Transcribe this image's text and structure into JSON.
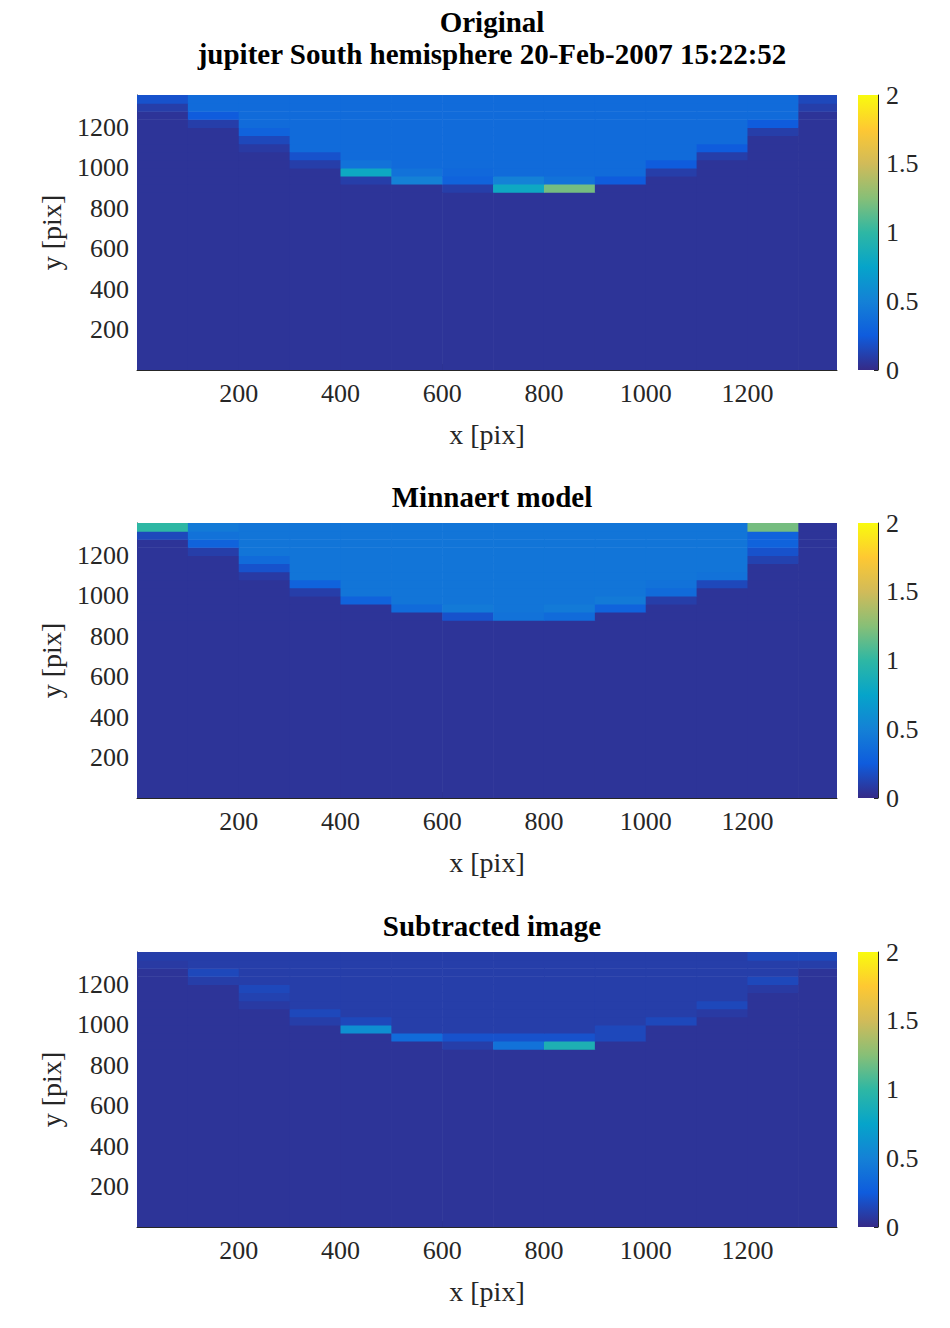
{
  "chart_data": [
    {
      "type": "heatmap",
      "title": "Original",
      "subtitle": "jupiter South hemisphere 20-Feb-2007 15:22:52",
      "x_label": "x [pix]",
      "y_label": "y [pix]",
      "xlim": [
        0,
        1376
      ],
      "ylim": [
        0,
        1360
      ],
      "xticks": [
        200,
        400,
        600,
        800,
        1000,
        1200
      ],
      "yticks": [
        200,
        400,
        600,
        800,
        1000,
        1200
      ],
      "x_edges": [
        0,
        100,
        200,
        300,
        400,
        500,
        600,
        700,
        800,
        900,
        1000,
        1100,
        1200,
        1300,
        1376
      ],
      "y_edges": [
        0,
        880,
        920,
        960,
        1000,
        1040,
        1080,
        1120,
        1160,
        1200,
        1240,
        1280,
        1320,
        1360
      ],
      "cells": [
        [
          0.05,
          0.05,
          0.05,
          0.05,
          0.05,
          0.05,
          0.05,
          0.05,
          0.05,
          0.05,
          0.05,
          0.05,
          0.05,
          0.05
        ],
        [
          0.05,
          0.05,
          0.05,
          0.05,
          0.05,
          0.05,
          0.1,
          0.8,
          1.2,
          0.05,
          0.05,
          0.05,
          0.05,
          0.05
        ],
        [
          0.05,
          0.05,
          0.05,
          0.05,
          0.1,
          0.5,
          0.3,
          0.5,
          0.4,
          0.25,
          0.05,
          0.05,
          0.05,
          0.05
        ],
        [
          0.05,
          0.05,
          0.05,
          0.05,
          0.8,
          0.4,
          0.33,
          0.35,
          0.35,
          0.35,
          0.1,
          0.05,
          0.05,
          0.05
        ],
        [
          0.05,
          0.05,
          0.05,
          0.1,
          0.4,
          0.35,
          0.35,
          0.35,
          0.35,
          0.35,
          0.25,
          0.05,
          0.05,
          0.05
        ],
        [
          0.05,
          0.05,
          0.05,
          0.2,
          0.35,
          0.35,
          0.35,
          0.35,
          0.35,
          0.35,
          0.35,
          0.1,
          0.05,
          0.05
        ],
        [
          0.05,
          0.05,
          0.08,
          0.35,
          0.35,
          0.35,
          0.35,
          0.35,
          0.35,
          0.35,
          0.35,
          0.25,
          0.05,
          0.05
        ],
        [
          0.05,
          0.05,
          0.15,
          0.35,
          0.35,
          0.35,
          0.35,
          0.35,
          0.35,
          0.35,
          0.35,
          0.35,
          0.05,
          0.05
        ],
        [
          0.05,
          0.05,
          0.3,
          0.35,
          0.35,
          0.35,
          0.35,
          0.35,
          0.35,
          0.35,
          0.35,
          0.35,
          0.1,
          0.05
        ],
        [
          0.05,
          0.1,
          0.35,
          0.35,
          0.35,
          0.35,
          0.35,
          0.35,
          0.35,
          0.35,
          0.35,
          0.35,
          0.25,
          0.05
        ],
        [
          0.05,
          0.25,
          0.35,
          0.35,
          0.35,
          0.35,
          0.35,
          0.35,
          0.35,
          0.35,
          0.35,
          0.35,
          0.35,
          0.05
        ],
        [
          0.1,
          0.35,
          0.35,
          0.35,
          0.35,
          0.35,
          0.35,
          0.35,
          0.35,
          0.35,
          0.35,
          0.35,
          0.35,
          0.1
        ],
        [
          0.2,
          0.35,
          0.35,
          0.35,
          0.35,
          0.35,
          0.35,
          0.35,
          0.35,
          0.35,
          0.35,
          0.35,
          0.35,
          0.15
        ]
      ],
      "colorbar_lim": [
        0,
        2
      ],
      "colorbar_ticks": [
        0,
        0.5,
        1,
        1.5,
        2
      ]
    },
    {
      "type": "heatmap",
      "title": "Minnaert model",
      "x_label": "x [pix]",
      "y_label": "y [pix]",
      "xlim": [
        0,
        1376
      ],
      "ylim": [
        0,
        1360
      ],
      "xticks": [
        200,
        400,
        600,
        800,
        1000,
        1200
      ],
      "yticks": [
        200,
        400,
        600,
        800,
        1000,
        1200
      ],
      "x_edges": [
        0,
        100,
        200,
        300,
        400,
        500,
        600,
        700,
        800,
        900,
        1000,
        1100,
        1200,
        1300,
        1376
      ],
      "y_edges": [
        0,
        880,
        920,
        960,
        1000,
        1040,
        1080,
        1120,
        1160,
        1200,
        1240,
        1280,
        1320,
        1360
      ],
      "cells": [
        [
          0.05,
          0.05,
          0.05,
          0.05,
          0.05,
          0.05,
          0.05,
          0.05,
          0.05,
          0.05,
          0.05,
          0.05,
          0.05,
          0.05
        ],
        [
          0.05,
          0.05,
          0.05,
          0.05,
          0.05,
          0.05,
          0.2,
          0.4,
          0.35,
          0.05,
          0.05,
          0.05,
          0.05,
          0.05
        ],
        [
          0.05,
          0.05,
          0.05,
          0.05,
          0.05,
          0.35,
          0.45,
          0.42,
          0.45,
          0.3,
          0.05,
          0.05,
          0.05,
          0.05
        ],
        [
          0.05,
          0.05,
          0.05,
          0.05,
          0.3,
          0.42,
          0.42,
          0.42,
          0.42,
          0.45,
          0.1,
          0.05,
          0.05,
          0.05
        ],
        [
          0.05,
          0.05,
          0.05,
          0.1,
          0.42,
          0.42,
          0.42,
          0.42,
          0.42,
          0.42,
          0.35,
          0.05,
          0.05,
          0.05
        ],
        [
          0.05,
          0.05,
          0.05,
          0.3,
          0.42,
          0.42,
          0.42,
          0.42,
          0.42,
          0.42,
          0.4,
          0.15,
          0.05,
          0.05
        ],
        [
          0.05,
          0.05,
          0.08,
          0.42,
          0.42,
          0.42,
          0.42,
          0.42,
          0.42,
          0.42,
          0.42,
          0.4,
          0.05,
          0.05
        ],
        [
          0.05,
          0.05,
          0.2,
          0.42,
          0.42,
          0.42,
          0.42,
          0.42,
          0.42,
          0.42,
          0.42,
          0.42,
          0.05,
          0.05
        ],
        [
          0.05,
          0.05,
          0.35,
          0.42,
          0.42,
          0.42,
          0.42,
          0.42,
          0.42,
          0.42,
          0.42,
          0.42,
          0.12,
          0.05
        ],
        [
          0.05,
          0.1,
          0.42,
          0.42,
          0.42,
          0.42,
          0.42,
          0.42,
          0.42,
          0.42,
          0.42,
          0.42,
          0.2,
          0.05
        ],
        [
          0.05,
          0.3,
          0.42,
          0.42,
          0.42,
          0.42,
          0.42,
          0.42,
          0.42,
          0.42,
          0.42,
          0.42,
          0.3,
          0.05
        ],
        [
          0.15,
          0.4,
          0.42,
          0.42,
          0.42,
          0.42,
          0.42,
          0.42,
          0.42,
          0.42,
          0.42,
          0.42,
          0.3,
          0.05
        ],
        [
          1.0,
          0.45,
          0.42,
          0.42,
          0.42,
          0.42,
          0.42,
          0.42,
          0.42,
          0.42,
          0.42,
          0.42,
          1.2,
          0.05
        ]
      ],
      "colorbar_lim": [
        0,
        2
      ],
      "colorbar_ticks": [
        0,
        0.5,
        1,
        1.5,
        2
      ]
    },
    {
      "type": "heatmap",
      "title": "Subtracted image",
      "x_label": "x [pix]",
      "y_label": "y [pix]",
      "xlim": [
        0,
        1376
      ],
      "ylim": [
        0,
        1360
      ],
      "xticks": [
        200,
        400,
        600,
        800,
        1000,
        1200
      ],
      "yticks": [
        200,
        400,
        600,
        800,
        1000,
        1200
      ],
      "x_edges": [
        0,
        100,
        200,
        300,
        400,
        500,
        600,
        700,
        800,
        900,
        1000,
        1100,
        1200,
        1300,
        1376
      ],
      "y_edges": [
        0,
        880,
        920,
        960,
        1000,
        1040,
        1080,
        1120,
        1160,
        1200,
        1240,
        1280,
        1320,
        1360
      ],
      "cells": [
        [
          0.05,
          0.05,
          0.05,
          0.05,
          0.05,
          0.05,
          0.05,
          0.05,
          0.05,
          0.05,
          0.05,
          0.05,
          0.05,
          0.05
        ],
        [
          0.05,
          0.05,
          0.05,
          0.05,
          0.05,
          0.05,
          0.1,
          0.4,
          0.9,
          0.05,
          0.05,
          0.05,
          0.05,
          0.05
        ],
        [
          0.05,
          0.05,
          0.05,
          0.05,
          0.05,
          0.35,
          0.2,
          0.2,
          0.2,
          0.15,
          0.05,
          0.05,
          0.05,
          0.05
        ],
        [
          0.05,
          0.05,
          0.05,
          0.05,
          0.6,
          0.1,
          0.1,
          0.1,
          0.1,
          0.15,
          0.05,
          0.05,
          0.05,
          0.05
        ],
        [
          0.05,
          0.05,
          0.05,
          0.1,
          0.15,
          0.1,
          0.1,
          0.1,
          0.1,
          0.1,
          0.15,
          0.05,
          0.05,
          0.05
        ],
        [
          0.05,
          0.05,
          0.05,
          0.15,
          0.1,
          0.1,
          0.1,
          0.1,
          0.1,
          0.1,
          0.1,
          0.08,
          0.05,
          0.05
        ],
        [
          0.05,
          0.05,
          0.08,
          0.1,
          0.1,
          0.1,
          0.1,
          0.1,
          0.1,
          0.1,
          0.1,
          0.15,
          0.05,
          0.05
        ],
        [
          0.05,
          0.05,
          0.12,
          0.1,
          0.1,
          0.1,
          0.1,
          0.1,
          0.1,
          0.1,
          0.1,
          0.1,
          0.05,
          0.05
        ],
        [
          0.05,
          0.05,
          0.15,
          0.1,
          0.1,
          0.1,
          0.1,
          0.1,
          0.1,
          0.1,
          0.1,
          0.1,
          0.08,
          0.05
        ],
        [
          0.05,
          0.1,
          0.1,
          0.1,
          0.1,
          0.1,
          0.1,
          0.1,
          0.1,
          0.1,
          0.1,
          0.1,
          0.15,
          0.05
        ],
        [
          0.05,
          0.15,
          0.1,
          0.1,
          0.1,
          0.1,
          0.1,
          0.1,
          0.1,
          0.1,
          0.1,
          0.1,
          0.1,
          0.05
        ],
        [
          0.08,
          0.1,
          0.1,
          0.1,
          0.1,
          0.1,
          0.1,
          0.1,
          0.1,
          0.1,
          0.1,
          0.1,
          0.1,
          0.1
        ],
        [
          0.1,
          0.1,
          0.1,
          0.1,
          0.1,
          0.1,
          0.1,
          0.1,
          0.1,
          0.1,
          0.1,
          0.1,
          0.15,
          0.15
        ]
      ],
      "colorbar_lim": [
        0,
        2
      ],
      "colorbar_ticks": [
        0,
        0.5,
        1,
        1.5,
        2
      ]
    }
  ]
}
